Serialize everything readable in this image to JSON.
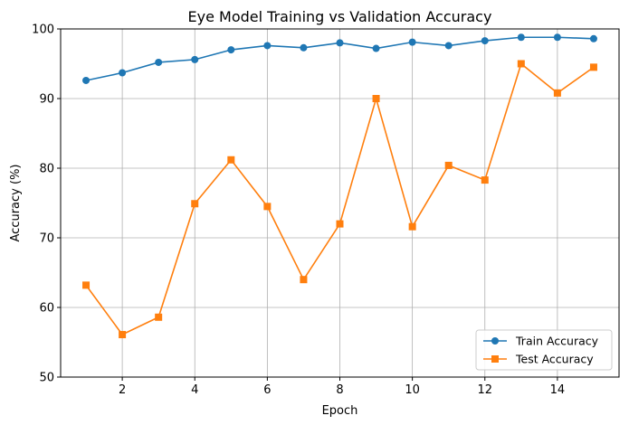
{
  "chart_data": {
    "type": "line",
    "title": "Eye Model Training vs Validation Accuracy",
    "xlabel": "Epoch",
    "ylabel": "Accuracy (%)",
    "x": [
      1,
      2,
      3,
      4,
      5,
      6,
      7,
      8,
      9,
      10,
      11,
      12,
      13,
      14,
      15
    ],
    "xlim": [
      0.3,
      15.7
    ],
    "ylim": [
      50,
      100
    ],
    "xticks": [
      2,
      4,
      6,
      8,
      10,
      12,
      14
    ],
    "yticks": [
      50,
      60,
      70,
      80,
      90,
      100
    ],
    "grid": true,
    "legend_position": "lower-right",
    "series": [
      {
        "name": "Train Accuracy",
        "color": "#1f77b4",
        "marker": "circle",
        "values": [
          92.6,
          93.7,
          95.2,
          95.6,
          97.0,
          97.6,
          97.3,
          98.0,
          97.2,
          98.1,
          97.6,
          98.3,
          98.8,
          98.8,
          98.6
        ]
      },
      {
        "name": "Test Accuracy",
        "color": "#ff7f0e",
        "marker": "square",
        "values": [
          63.2,
          56.1,
          58.6,
          74.9,
          81.2,
          74.5,
          64.0,
          72.0,
          90.0,
          71.6,
          80.4,
          78.3,
          95.0,
          90.8,
          94.5
        ]
      }
    ]
  }
}
